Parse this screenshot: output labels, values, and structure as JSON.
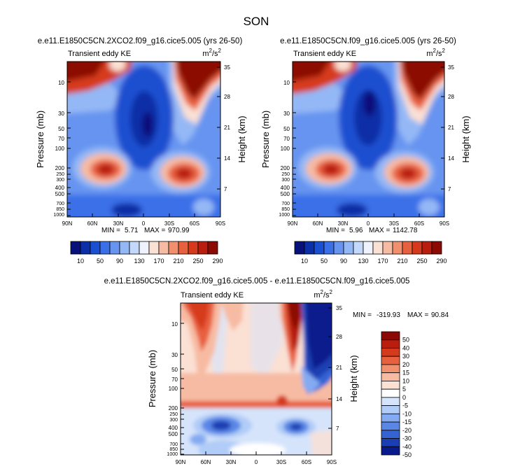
{
  "figure_title": "SON",
  "panels": [
    {
      "id": "top-left",
      "title": "e.e11.E1850C5CN.2XCO2.f09_g16.cice5.005 (yrs 26-50)",
      "left_string": "Transient eddy KE",
      "units_base": "m",
      "units_sup1": "2",
      "units_mid": "/s",
      "units_sup2": "2",
      "ylabel": "Pressure (mb)",
      "y2label": "Height (km)",
      "yticks": [
        "10",
        "30",
        "50",
        "70",
        "100",
        "200",
        "250",
        "300",
        "400",
        "500",
        "700",
        "850",
        "1000"
      ],
      "y2ticks": [
        "35",
        "28",
        "21",
        "14",
        "7"
      ],
      "xticks": [
        "90N",
        "60N",
        "30N",
        "0",
        "30S",
        "60S",
        "90S"
      ],
      "min_label": "MIN =",
      "min_value": "5.71",
      "max_label": "MAX =",
      "max_value": "970.99",
      "colorbar_labels": [
        "10",
        "50",
        "90",
        "130",
        "170",
        "210",
        "250",
        "290"
      ]
    },
    {
      "id": "top-right",
      "title": "e.e11.E1850C5CN.f09_g16.cice5.005 (yrs 26-50)",
      "left_string": "Transient eddy KE",
      "units_base": "m",
      "units_sup1": "2",
      "units_mid": "/s",
      "units_sup2": "2",
      "ylabel": "Pressure (mb)",
      "y2label": "Height (km)",
      "yticks": [
        "10",
        "30",
        "50",
        "70",
        "100",
        "200",
        "250",
        "300",
        "400",
        "500",
        "700",
        "850",
        "1000"
      ],
      "y2ticks": [
        "35",
        "28",
        "21",
        "14",
        "7"
      ],
      "xticks": [
        "90N",
        "60N",
        "30N",
        "0",
        "30S",
        "60S",
        "90S"
      ],
      "min_label": "MIN =",
      "min_value": "5.96",
      "max_label": "MAX =",
      "max_value": "1142.78",
      "colorbar_labels": [
        "10",
        "50",
        "90",
        "130",
        "170",
        "210",
        "250",
        "290"
      ]
    },
    {
      "id": "bottom",
      "title": "e.e11.E1850C5CN.2XCO2.f09_g16.cice5.005 - e.e11.E1850C5CN.f09_g16.cice5.005",
      "left_string": "Transient eddy KE",
      "units_base": "m",
      "units_sup1": "2",
      "units_mid": "/s",
      "units_sup2": "2",
      "ylabel": "Pressure (mb)",
      "y2label": "Height (km)",
      "yticks": [
        "10",
        "30",
        "50",
        "70",
        "100",
        "200",
        "250",
        "300",
        "400",
        "500",
        "700",
        "850",
        "1000"
      ],
      "y2ticks": [
        "35",
        "28",
        "21",
        "14",
        "7"
      ],
      "xticks": [
        "90N",
        "60N",
        "30N",
        "0",
        "30S",
        "60S",
        "90S"
      ],
      "min_label": "MIN =",
      "min_value": "-319.93",
      "max_label": "MAX =",
      "max_value": "90.84",
      "colorbar_labels": [
        "50",
        "40",
        "30",
        "20",
        "15",
        "10",
        "5",
        "0",
        "-5",
        "-10",
        "-15",
        "-20",
        "-30",
        "-40",
        "-50"
      ]
    }
  ],
  "colors": {
    "seq_palette": [
      "#08107a",
      "#0b2fa6",
      "#1a4fd0",
      "#3b6fe8",
      "#6694f0",
      "#94b8f5",
      "#c3d8fa",
      "#eef3fd",
      "#fbe0d4",
      "#f7bba3",
      "#f1906f",
      "#e8613f",
      "#d63a1c",
      "#b81d0d",
      "#8c0a04"
    ],
    "div_palette": [
      "#8c0a04",
      "#b81d0d",
      "#d63a1c",
      "#e8613f",
      "#f1906f",
      "#f7bba3",
      "#fbe0d4",
      "#ffffff",
      "#d6e4fb",
      "#b0ccf7",
      "#84abf1",
      "#5a87e6",
      "#3563d4",
      "#1a3fb3",
      "#081a8c"
    ]
  },
  "chart_data": [
    {
      "type": "heatmap",
      "title": "e.e11.E1850C5CN.2XCO2.f09_g16.cice5.005 (yrs 26-50)",
      "variable": "Transient eddy KE",
      "units": "m2/s2",
      "x_axis": [
        "90N",
        "60N",
        "30N",
        "0",
        "30S",
        "60S",
        "90S"
      ],
      "y_axis_pressure": [
        10,
        30,
        50,
        70,
        100,
        200,
        250,
        300,
        400,
        500,
        700,
        850,
        1000
      ],
      "y2_axis_height": [
        35,
        28,
        21,
        14,
        7
      ],
      "min": 5.71,
      "max": 970.99,
      "contour_levels": [
        10,
        30,
        50,
        70,
        90,
        110,
        130,
        150,
        170,
        190,
        210,
        230,
        250,
        270,
        290
      ]
    },
    {
      "type": "heatmap",
      "title": "e.e11.E1850C5CN.f09_g16.cice5.005 (yrs 26-50)",
      "variable": "Transient eddy KE",
      "units": "m2/s2",
      "x_axis": [
        "90N",
        "60N",
        "30N",
        "0",
        "30S",
        "60S",
        "90S"
      ],
      "y_axis_pressure": [
        10,
        30,
        50,
        70,
        100,
        200,
        250,
        300,
        400,
        500,
        700,
        850,
        1000
      ],
      "y2_axis_height": [
        35,
        28,
        21,
        14,
        7
      ],
      "min": 5.96,
      "max": 1142.78,
      "contour_levels": [
        10,
        30,
        50,
        70,
        90,
        110,
        130,
        150,
        170,
        190,
        210,
        230,
        250,
        270,
        290
      ]
    },
    {
      "type": "heatmap",
      "title": "e.e11.E1850C5CN.2XCO2.f09_g16.cice5.005 - e.e11.E1850C5CN.f09_g16.cice5.005",
      "variable": "Transient eddy KE",
      "units": "m2/s2",
      "x_axis": [
        "90N",
        "60N",
        "30N",
        "0",
        "30S",
        "60S",
        "90S"
      ],
      "y_axis_pressure": [
        10,
        30,
        50,
        70,
        100,
        200,
        250,
        300,
        400,
        500,
        700,
        850,
        1000
      ],
      "y2_axis_height": [
        35,
        28,
        21,
        14,
        7
      ],
      "min": -319.93,
      "max": 90.84,
      "contour_levels": [
        50,
        40,
        30,
        20,
        15,
        10,
        5,
        0,
        -5,
        -10,
        -15,
        -20,
        -30,
        -40,
        -50
      ]
    }
  ]
}
